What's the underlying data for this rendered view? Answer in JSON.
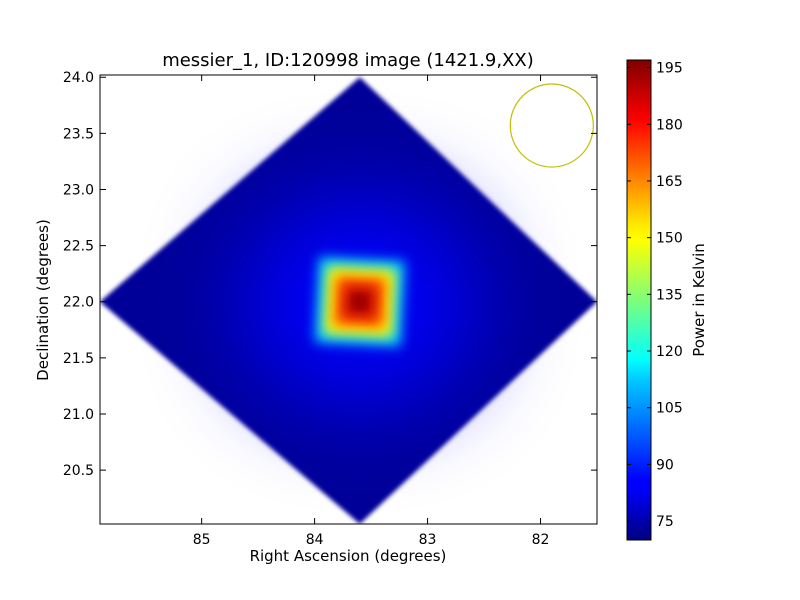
{
  "chart_data": {
    "type": "heatmap",
    "title": "messier_1, ID:120998 image (1421.9,XX)",
    "xlabel": "Right Ascension (degrees)",
    "ylabel": "Declination (degrees)",
    "xlim": [
      85.9,
      81.5
    ],
    "ylim": [
      20.02,
      24.02
    ],
    "x_ticks": [
      85,
      84,
      83,
      82
    ],
    "x_tick_labels": [
      "85",
      "84",
      "83",
      "82"
    ],
    "y_ticks": [
      20.5,
      21.0,
      21.5,
      22.0,
      22.5,
      23.0,
      23.5,
      24.0
    ],
    "y_tick_labels": [
      "20.5",
      "21.0",
      "21.5",
      "22.0",
      "22.5",
      "23.0",
      "23.5",
      "24.0"
    ],
    "colorbar": {
      "label": "Power in Kelvin",
      "colormap": "jet",
      "range": [
        70,
        197
      ],
      "ticks": [
        75,
        90,
        105,
        120,
        135,
        150,
        165,
        180,
        195
      ],
      "tick_labels": [
        "75",
        "90",
        "105",
        "120",
        "135",
        "150",
        "165",
        "180",
        "195"
      ]
    },
    "footprint": {
      "shape": "diamond",
      "vertices": [
        [
          83.6,
          24.0
        ],
        [
          81.5,
          22.0
        ],
        [
          83.6,
          20.02
        ],
        [
          85.9,
          22.0
        ]
      ],
      "background_value": 73
    },
    "source": {
      "ra": 83.6,
      "dec": 22.0,
      "peak_value": 197,
      "half_size_deg": 0.38,
      "levels": [
        {
          "half_size": 0.38,
          "value": 112
        },
        {
          "half_size": 0.3,
          "value": 150
        },
        {
          "half_size": 0.22,
          "value": 172
        },
        {
          "half_size": 0.13,
          "value": 190
        },
        {
          "half_size": 0.05,
          "value": 197
        }
      ]
    },
    "halo_value": 85,
    "beam": {
      "ra": 81.9,
      "dec": 23.57,
      "radius_deg": 0.37,
      "color": "#bfbf00"
    }
  }
}
